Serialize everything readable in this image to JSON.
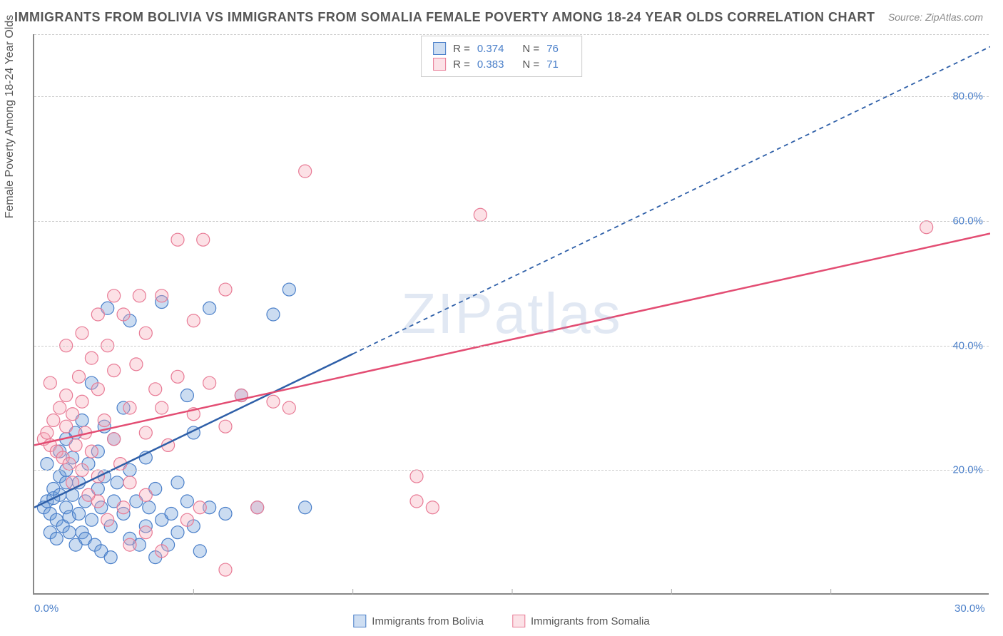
{
  "title": "IMMIGRANTS FROM BOLIVIA VS IMMIGRANTS FROM SOMALIA FEMALE POVERTY AMONG 18-24 YEAR OLDS CORRELATION CHART",
  "source_label": "Source:",
  "source_value": "ZipAtlas.com",
  "ylabel": "Female Poverty Among 18-24 Year Olds",
  "watermark": "ZIPatlas",
  "chart": {
    "type": "scatter",
    "xlim": [
      0,
      30
    ],
    "ylim": [
      0,
      90
    ],
    "xtick_labels": [
      {
        "x": 0,
        "label": "0.0%"
      },
      {
        "x": 30,
        "label": "30.0%"
      }
    ],
    "ytick_labels": [
      {
        "y": 20,
        "label": "20.0%"
      },
      {
        "y": 40,
        "label": "40.0%"
      },
      {
        "y": 60,
        "label": "60.0%"
      },
      {
        "y": 80,
        "label": "80.0%"
      }
    ],
    "grid_y": [
      20,
      40,
      60,
      80,
      90
    ],
    "grid_color": "#cccccc",
    "background_color": "#ffffff",
    "axis_color": "#888888",
    "marker_radius": 9,
    "marker_stroke_width": 1.2,
    "fill_opacity": 0.35,
    "line_width": 2.5,
    "dash_pattern": "6,5",
    "series": [
      {
        "name": "Immigrants from Bolivia",
        "color": "#6b9bd8",
        "stroke": "#4a7fc9",
        "trend_color": "#2e5fa8",
        "R": "0.374",
        "N": "76",
        "trend": {
          "x1": 0,
          "y1": 14,
          "x2": 30,
          "y2": 88,
          "solid_until_x": 10
        },
        "points": [
          [
            0.3,
            14
          ],
          [
            0.4,
            15
          ],
          [
            0.5,
            13
          ],
          [
            0.6,
            15.5
          ],
          [
            0.6,
            17
          ],
          [
            0.7,
            12
          ],
          [
            0.8,
            16
          ],
          [
            0.8,
            19
          ],
          [
            0.9,
            11
          ],
          [
            1,
            18
          ],
          [
            1,
            14
          ],
          [
            1,
            20
          ],
          [
            1.1,
            12.5
          ],
          [
            1.2,
            22
          ],
          [
            1.2,
            16
          ],
          [
            1.3,
            26
          ],
          [
            1.4,
            13
          ],
          [
            1.4,
            18
          ],
          [
            1.5,
            10
          ],
          [
            1.5,
            28
          ],
          [
            1.6,
            15
          ],
          [
            1.7,
            21
          ],
          [
            1.8,
            12
          ],
          [
            1.8,
            34
          ],
          [
            2,
            17
          ],
          [
            2,
            23
          ],
          [
            2.1,
            14
          ],
          [
            2.2,
            19
          ],
          [
            2.3,
            46
          ],
          [
            2.4,
            11
          ],
          [
            2.5,
            15
          ],
          [
            2.5,
            25
          ],
          [
            2.6,
            18
          ],
          [
            2.8,
            13
          ],
          [
            3,
            9
          ],
          [
            3,
            20
          ],
          [
            3,
            44
          ],
          [
            3.2,
            15
          ],
          [
            3.3,
            8
          ],
          [
            3.5,
            11
          ],
          [
            3.5,
            22
          ],
          [
            3.6,
            14
          ],
          [
            3.8,
            6
          ],
          [
            4,
            47
          ],
          [
            4,
            12
          ],
          [
            4.2,
            8
          ],
          [
            4.5,
            10
          ],
          [
            4.5,
            18
          ],
          [
            4.8,
            15
          ],
          [
            5,
            11
          ],
          [
            5,
            26
          ],
          [
            5.2,
            7
          ],
          [
            5.5,
            14
          ],
          [
            5.5,
            46
          ],
          [
            6,
            13
          ],
          [
            6.5,
            32
          ],
          [
            7,
            14
          ],
          [
            7.5,
            45
          ],
          [
            8,
            49
          ],
          [
            8.5,
            14
          ],
          [
            4.8,
            32
          ],
          [
            2.8,
            30
          ],
          [
            1.6,
            9
          ],
          [
            1.9,
            8
          ],
          [
            2.1,
            7
          ],
          [
            2.4,
            6
          ],
          [
            0.5,
            10
          ],
          [
            0.7,
            9
          ],
          [
            1.1,
            10
          ],
          [
            1.3,
            8
          ],
          [
            3.8,
            17
          ],
          [
            4.3,
            13
          ],
          [
            0.4,
            21
          ],
          [
            0.8,
            23
          ],
          [
            1.0,
            25
          ],
          [
            2.2,
            27
          ]
        ]
      },
      {
        "name": "Immigrants from Somalia",
        "color": "#f5a8b8",
        "stroke": "#e87a95",
        "trend_color": "#e34d73",
        "R": "0.383",
        "N": "71",
        "trend": {
          "x1": 0,
          "y1": 24,
          "x2": 30,
          "y2": 58,
          "solid_until_x": 30
        },
        "points": [
          [
            0.3,
            25
          ],
          [
            0.4,
            26
          ],
          [
            0.5,
            24
          ],
          [
            0.6,
            28
          ],
          [
            0.7,
            23
          ],
          [
            0.8,
            30
          ],
          [
            0.9,
            22
          ],
          [
            1,
            27
          ],
          [
            1,
            32
          ],
          [
            1.1,
            21
          ],
          [
            1.2,
            29
          ],
          [
            1.3,
            24
          ],
          [
            1.4,
            35
          ],
          [
            1.5,
            20
          ],
          [
            1.5,
            31
          ],
          [
            1.6,
            26
          ],
          [
            1.8,
            38
          ],
          [
            1.8,
            23
          ],
          [
            2,
            33
          ],
          [
            2,
            19
          ],
          [
            2.2,
            28
          ],
          [
            2.3,
            40
          ],
          [
            2.5,
            25
          ],
          [
            2.5,
            36
          ],
          [
            2.7,
            21
          ],
          [
            2.8,
            45
          ],
          [
            3,
            30
          ],
          [
            3,
            18
          ],
          [
            3.2,
            37
          ],
          [
            3.3,
            48
          ],
          [
            3.5,
            26
          ],
          [
            3.5,
            42
          ],
          [
            3.8,
            33
          ],
          [
            4,
            30
          ],
          [
            4,
            48
          ],
          [
            4.2,
            24
          ],
          [
            4.5,
            35
          ],
          [
            4.5,
            57
          ],
          [
            5,
            29
          ],
          [
            5,
            44
          ],
          [
            5.2,
            14
          ],
          [
            5.3,
            57
          ],
          [
            5.5,
            34
          ],
          [
            6,
            27
          ],
          [
            6,
            49
          ],
          [
            6.5,
            32
          ],
          [
            7,
            14
          ],
          [
            7.5,
            31
          ],
          [
            8,
            30
          ],
          [
            8.5,
            68
          ],
          [
            12,
            15
          ],
          [
            12,
            19
          ],
          [
            12.5,
            14
          ],
          [
            14,
            61
          ],
          [
            6,
            4
          ],
          [
            3,
            8
          ],
          [
            3.5,
            10
          ],
          [
            4,
            7
          ],
          [
            4.8,
            12
          ],
          [
            2,
            15
          ],
          [
            2.3,
            12
          ],
          [
            0.5,
            34
          ],
          [
            1,
            40
          ],
          [
            1.5,
            42
          ],
          [
            2,
            45
          ],
          [
            2.5,
            48
          ],
          [
            28,
            59
          ],
          [
            1.2,
            18
          ],
          [
            1.7,
            16
          ],
          [
            2.8,
            14
          ],
          [
            3.5,
            16
          ]
        ]
      }
    ]
  },
  "legend_top": {
    "R_label": "R =",
    "N_label": "N ="
  },
  "legend_bottom": [
    "Immigrants from Bolivia",
    "Immigrants from Somalia"
  ]
}
